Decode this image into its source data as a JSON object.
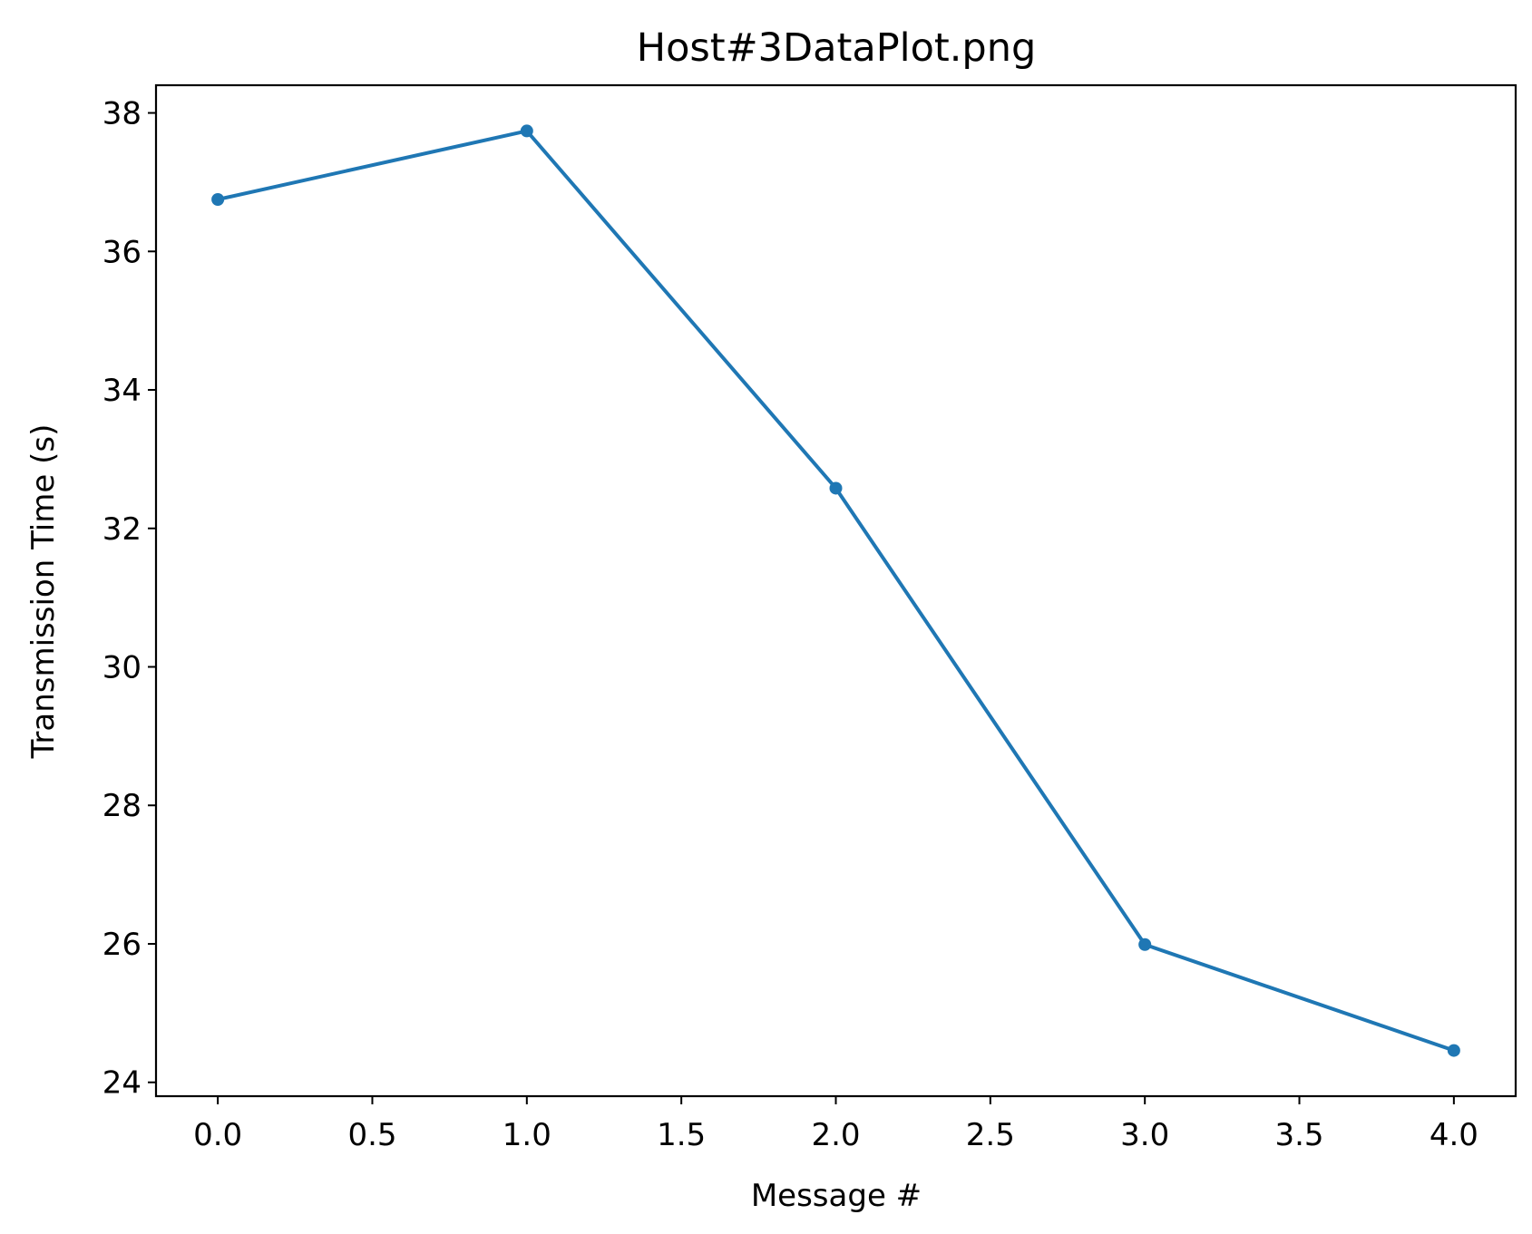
{
  "chart_data": {
    "type": "line",
    "title": "Host#3DataPlot.png",
    "xlabel": "Message #",
    "ylabel": "Transmission Time (s)",
    "x": [
      0,
      1,
      2,
      3,
      4
    ],
    "series": [
      {
        "values": [
          36.75,
          37.74,
          32.58,
          25.99,
          24.46
        ],
        "color": "#1f77b4",
        "marker": "circle"
      }
    ],
    "xlim": [
      -0.2,
      4.2
    ],
    "ylim": [
      23.8,
      38.4
    ],
    "xticks": [
      0.0,
      0.5,
      1.0,
      1.5,
      2.0,
      2.5,
      3.0,
      3.5,
      4.0
    ],
    "xtick_labels": [
      "0.0",
      "0.5",
      "1.0",
      "1.5",
      "2.0",
      "2.5",
      "3.0",
      "3.5",
      "4.0"
    ],
    "yticks": [
      24,
      26,
      28,
      30,
      32,
      34,
      36,
      38
    ],
    "ytick_labels": [
      "24",
      "26",
      "28",
      "30",
      "32",
      "34",
      "36",
      "38"
    ],
    "grid": false,
    "legend": "none"
  }
}
